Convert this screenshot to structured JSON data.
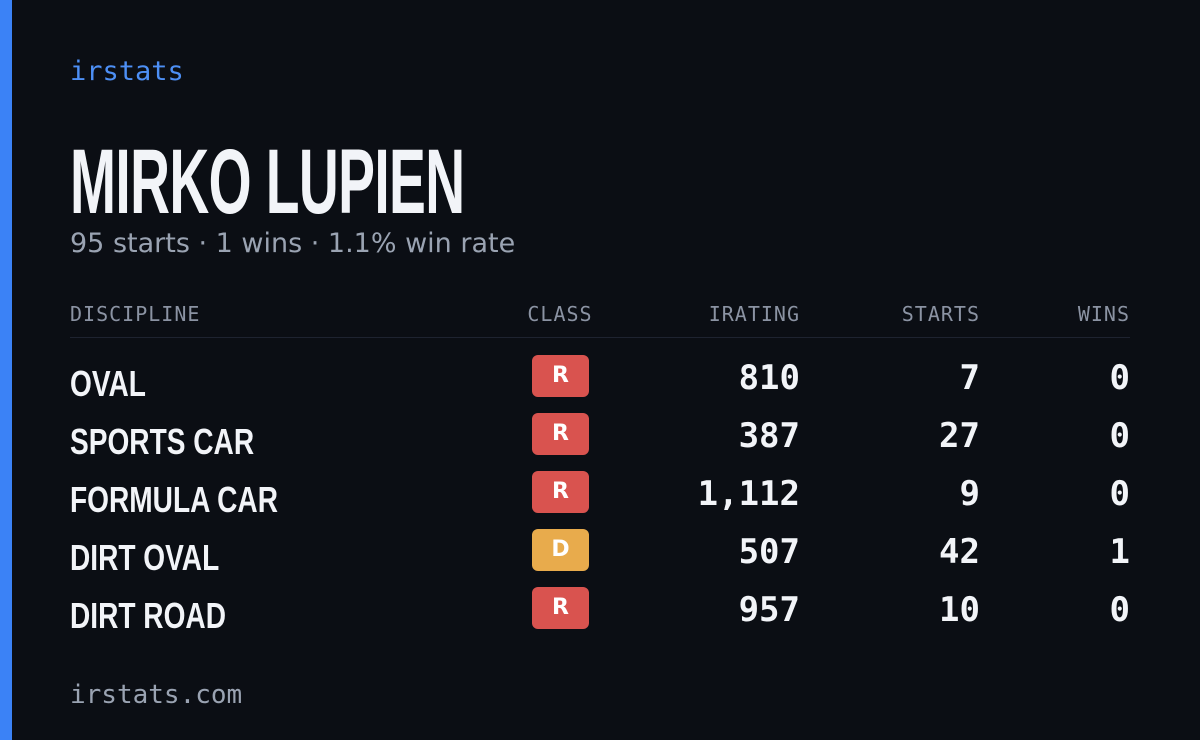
{
  "brand": "irstats",
  "name": "MIRKO LUPIEN",
  "subtitle": "95 starts · 1 wins · 1.1% win rate",
  "table": {
    "columns": [
      "DISCIPLINE",
      "CLASS",
      "IRATING",
      "STARTS",
      "WINS"
    ],
    "rows": [
      {
        "discipline": "OVAL",
        "class": "R",
        "class_color": "#d9534f",
        "irating": "810",
        "starts": "7",
        "wins": "0"
      },
      {
        "discipline": "SPORTS CAR",
        "class": "R",
        "class_color": "#d9534f",
        "irating": "387",
        "starts": "27",
        "wins": "0"
      },
      {
        "discipline": "FORMULA CAR",
        "class": "R",
        "class_color": "#d9534f",
        "irating": "1,112",
        "starts": "9",
        "wins": "0"
      },
      {
        "discipline": "DIRT OVAL",
        "class": "D",
        "class_color": "#e8ab4c",
        "irating": "507",
        "starts": "42",
        "wins": "1"
      },
      {
        "discipline": "DIRT ROAD",
        "class": "R",
        "class_color": "#d9534f",
        "irating": "957",
        "starts": "10",
        "wins": "0"
      }
    ]
  },
  "footer": "irstats.com"
}
